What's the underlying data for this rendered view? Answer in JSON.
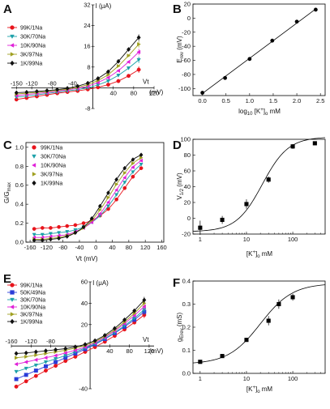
{
  "figure": {
    "panels": {
      "A": {
        "letter": "A"
      },
      "B": {
        "letter": "B"
      },
      "C": {
        "letter": "C"
      },
      "D": {
        "letter": "D"
      },
      "E": {
        "letter": "E"
      },
      "F": {
        "letter": "F"
      }
    }
  },
  "chart_data": [
    {
      "panel": "A",
      "type": "line",
      "ylabel": "I (μA)",
      "xlabel": "Vt (mV)",
      "xlabel_parts": {
        "name": "Vt",
        "unit": "(mV)"
      },
      "xlim": [
        -160,
        120
      ],
      "ylim": [
        -8,
        32
      ],
      "x_ticks": [
        "-150",
        "-120",
        "-80",
        "-40",
        "40",
        "80",
        "120"
      ],
      "x_tick_values": [
        -150,
        -120,
        -80,
        -40,
        40,
        80,
        120
      ],
      "y_ticks": [
        "-8",
        "8",
        "16",
        "24",
        "32"
      ],
      "y_tick_values": [
        -8,
        8,
        16,
        24,
        32
      ],
      "x": [
        -150,
        -130,
        -110,
        -90,
        -70,
        -50,
        -30,
        -10,
        10,
        30,
        50,
        70,
        90
      ],
      "series": [
        {
          "name": "99K/1Na",
          "color": "#e8141c",
          "marker": "circle",
          "values": [
            -4.5,
            -3.9,
            -3.3,
            -2.7,
            -2.1,
            -1.6,
            -1.2,
            -0.6,
            0.2,
            1.2,
            2.6,
            4.6,
            7.0
          ]
        },
        {
          "name": "30K/70Na",
          "color": "#1aa0a8",
          "marker": "triangle-down",
          "values": [
            -3.6,
            -3.2,
            -2.7,
            -2.2,
            -1.7,
            -1.2,
            -0.7,
            0.0,
            1.1,
            2.6,
            4.8,
            7.6,
            10.8
          ]
        },
        {
          "name": "10K/90Na",
          "color": "#e020d8",
          "marker": "triangle-left",
          "values": [
            -3.0,
            -2.6,
            -2.2,
            -1.8,
            -1.3,
            -0.8,
            -0.2,
            0.6,
            2.0,
            3.9,
            6.6,
            10.0,
            13.8
          ]
        },
        {
          "name": "3K/97Na",
          "color": "#a0a020",
          "marker": "triangle-right",
          "values": [
            -2.4,
            -2.1,
            -1.8,
            -1.4,
            -1.0,
            -0.5,
            0.2,
            1.2,
            2.8,
            5.0,
            8.4,
            12.4,
            16.8
          ]
        },
        {
          "name": "1K/99Na",
          "color": "#111111",
          "marker": "diamond",
          "values": [
            -1.9,
            -1.7,
            -1.4,
            -1.1,
            -0.7,
            -0.2,
            0.6,
            1.8,
            3.6,
            6.2,
            10.2,
            14.8,
            19.4
          ]
        }
      ]
    },
    {
      "panel": "B",
      "type": "scatter",
      "ylabel": "E_rev (mV)",
      "ylabel_parts": {
        "main": "E",
        "sub": "rev",
        "unit": " (mV)"
      },
      "xlabel": "log10 [K+]o mM",
      "xlabel_parts": {
        "pre": "log",
        "sub1": "10",
        "mid": " [K",
        "sup": "+",
        "close": "]",
        "sub2": "o",
        "unit": " mM"
      },
      "xlim": [
        -0.2,
        2.6
      ],
      "ylim": [
        -110,
        20
      ],
      "x_ticks": [
        "0.0",
        "0.5",
        "1.0",
        "1.5",
        "2.0",
        "2.5"
      ],
      "x_tick_values": [
        0,
        0.5,
        1.0,
        1.5,
        2.0,
        2.5
      ],
      "y_ticks": [
        "-100",
        "-80",
        "-60",
        "-40",
        "-20",
        "0",
        "20"
      ],
      "y_tick_values": [
        -100,
        -80,
        -60,
        -40,
        -20,
        0,
        20
      ],
      "x": [
        0.0,
        0.48,
        1.0,
        1.48,
        2.0,
        2.4
      ],
      "values": [
        -106,
        -85,
        -58,
        -32,
        -5,
        12
      ],
      "fit_line": {
        "x": [
          0.0,
          2.4
        ],
        "y": [
          -107,
          13
        ]
      }
    },
    {
      "panel": "C",
      "type": "line",
      "ylabel": "G/Gmax",
      "ylabel_parts": {
        "main": "G/G",
        "sub": "max"
      },
      "xlabel": "Vt (mV)",
      "xlim": [
        -170,
        165
      ],
      "ylim": [
        0.0,
        1.05
      ],
      "x_ticks": [
        "-160",
        "-120",
        "-80",
        "-40",
        "0",
        "40",
        "80",
        "120",
        "160"
      ],
      "x_tick_values": [
        -160,
        -120,
        -80,
        -40,
        0,
        40,
        80,
        120,
        160
      ],
      "y_ticks": [
        "0.0",
        "0.2",
        "0.4",
        "0.6",
        "0.8",
        "1.0"
      ],
      "y_tick_values": [
        0.0,
        0.2,
        0.4,
        0.6,
        0.8,
        1.0
      ],
      "x": [
        -150,
        -130,
        -110,
        -90,
        -70,
        -50,
        -30,
        -10,
        10,
        30,
        50,
        70,
        90,
        110
      ],
      "series": [
        {
          "name": "99K/1Na",
          "color": "#e8141c",
          "marker": "circle",
          "values": [
            0.14,
            0.15,
            0.15,
            0.16,
            0.17,
            0.18,
            0.2,
            0.23,
            0.28,
            0.35,
            0.45,
            0.57,
            0.69,
            0.78
          ]
        },
        {
          "name": "30K/70Na",
          "color": "#1aa0a8",
          "marker": "triangle-down",
          "values": [
            0.08,
            0.08,
            0.09,
            0.1,
            0.11,
            0.13,
            0.16,
            0.21,
            0.28,
            0.38,
            0.5,
            0.63,
            0.74,
            0.82
          ]
        },
        {
          "name": "10K/90Na",
          "color": "#e020d8",
          "marker": "triangle-left",
          "values": [
            0.05,
            0.05,
            0.06,
            0.07,
            0.08,
            0.11,
            0.15,
            0.21,
            0.3,
            0.42,
            0.55,
            0.68,
            0.79,
            0.86
          ]
        },
        {
          "name": "3K/97Na",
          "color": "#a0a020",
          "marker": "triangle-right",
          "values": [
            0.03,
            0.03,
            0.04,
            0.05,
            0.07,
            0.1,
            0.15,
            0.23,
            0.34,
            0.47,
            0.61,
            0.73,
            0.83,
            0.89
          ]
        },
        {
          "name": "1K/99Na",
          "color": "#111111",
          "marker": "diamond",
          "values": [
            0.02,
            0.02,
            0.03,
            0.04,
            0.06,
            0.1,
            0.16,
            0.25,
            0.38,
            0.52,
            0.66,
            0.78,
            0.87,
            0.92
          ]
        }
      ]
    },
    {
      "panel": "D",
      "type": "scatter",
      "ylabel": "V1/2 (mV)",
      "ylabel_parts": {
        "main": "V",
        "sub": "1/2",
        "unit": " (mV)"
      },
      "xlabel": "[K+]o mM",
      "xlabel_parts": {
        "open": "[K",
        "sup": "+",
        "close": "]",
        "sub": "o",
        "unit": " mM"
      },
      "xscale": "log",
      "xlim": [
        0.7,
        500
      ],
      "ylim": [
        -20,
        100
      ],
      "x_ticks": [
        "1",
        "10",
        "100"
      ],
      "x_tick_values": [
        1,
        10,
        100
      ],
      "y_ticks": [
        "-20",
        "0",
        "20",
        "40",
        "60",
        "80",
        "100"
      ],
      "y_tick_values": [
        -20,
        0,
        20,
        40,
        60,
        80,
        100
      ],
      "x": [
        1,
        3,
        10,
        30,
        100,
        300
      ],
      "values": [
        -12,
        -2,
        18,
        49,
        91,
        95
      ],
      "errors": [
        9,
        5,
        6,
        4,
        3,
        2
      ],
      "fit": {
        "kind": "sigmoid",
        "bottom": -17,
        "top": 103,
        "x50": 22,
        "slope": 1.55
      }
    },
    {
      "panel": "E",
      "type": "line",
      "ylabel": "I (μA)",
      "xlabel": "Vt (mV)",
      "xlabel_parts": {
        "name": "Vt",
        "unit": "(mV)"
      },
      "xlim": [
        -160,
        130
      ],
      "ylim": [
        -40,
        60
      ],
      "x_ticks": [
        "-160",
        "-120",
        "-80",
        "40",
        "80",
        "120"
      ],
      "x_tick_values": [
        -160,
        -120,
        -80,
        40,
        80,
        120
      ],
      "y_ticks": [
        "-40",
        "20",
        "40",
        "60"
      ],
      "y_tick_values": [
        -40,
        20,
        40,
        60
      ],
      "x": [
        -150,
        -130,
        -110,
        -90,
        -70,
        -50,
        -30,
        -10,
        10,
        30,
        50,
        70,
        90,
        110
      ],
      "series": [
        {
          "name": "99K/1Na",
          "color": "#e8141c",
          "marker": "circle",
          "values": [
            -38,
            -33,
            -28,
            -23,
            -18.5,
            -14,
            -10,
            -5.5,
            -1,
            4,
            9.5,
            15.5,
            22,
            29
          ]
        },
        {
          "name": "50K/49Na",
          "color": "#2a3cd8",
          "marker": "square",
          "values": [
            -31,
            -27,
            -23,
            -19,
            -15,
            -11,
            -7,
            -3,
            1.5,
            6.5,
            12,
            18,
            24.5,
            32
          ]
        },
        {
          "name": "30K/70Na",
          "color": "#1aa0a8",
          "marker": "triangle-down",
          "values": [
            -24,
            -21,
            -18,
            -15,
            -12,
            -9,
            -5.5,
            -2,
            2,
            7,
            12.5,
            19,
            26,
            34
          ]
        },
        {
          "name": "10K/90Na",
          "color": "#e020d8",
          "marker": "triangle-left",
          "values": [
            -17,
            -15,
            -13,
            -11,
            -9,
            -6.5,
            -4,
            -1,
            3,
            8,
            14,
            21,
            28.5,
            37
          ]
        },
        {
          "name": "3K/97Na",
          "color": "#a0a020",
          "marker": "triangle-right",
          "values": [
            -11,
            -10,
            -8.5,
            -7,
            -5.5,
            -4,
            -2,
            0.5,
            4,
            9,
            15,
            22.5,
            30.5,
            40
          ]
        },
        {
          "name": "1K/99Na",
          "color": "#111111",
          "marker": "diamond",
          "values": [
            -7,
            -6.5,
            -5.5,
            -4.5,
            -3.5,
            -2.5,
            -0.8,
            1.5,
            5,
            10,
            16.5,
            24.5,
            33,
            43
          ]
        }
      ]
    },
    {
      "panel": "F",
      "type": "scatter",
      "ylabel": "gErev (mS)",
      "ylabel_parts": {
        "main": "g",
        "sub": "Erev",
        "unit": " (mS)"
      },
      "xlabel": "[K+]o mM",
      "xlabel_parts": {
        "open": "[K",
        "sup": "+",
        "close": "]",
        "sub": "o",
        "unit": " mM"
      },
      "xscale": "log",
      "xlim": [
        0.7,
        500
      ],
      "ylim": [
        0.0,
        0.4
      ],
      "x_ticks": [
        "1",
        "10",
        "100"
      ],
      "x_tick_values": [
        1,
        10,
        100
      ],
      "y_ticks": [
        "0.0",
        "0.1",
        "0.2",
        "0.3",
        "0.4"
      ],
      "y_tick_values": [
        0.0,
        0.1,
        0.2,
        0.3,
        0.4
      ],
      "x": [
        1,
        3,
        10,
        30,
        50,
        100
      ],
      "values": [
        0.05,
        0.075,
        0.145,
        0.228,
        0.3,
        0.33
      ],
      "errors": [
        0.004,
        0.005,
        0.008,
        0.02,
        0.02,
        0.015
      ],
      "fit": {
        "kind": "sigmoid",
        "bottom": 0.04,
        "top": 0.39,
        "x50": 20,
        "slope": 1.25
      }
    }
  ]
}
